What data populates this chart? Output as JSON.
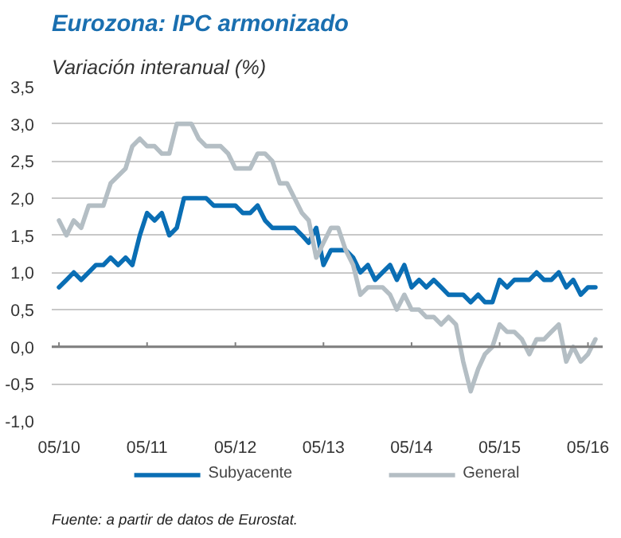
{
  "chart_data": {
    "type": "line",
    "title": "Eurozona: IPC armonizado",
    "subtitle": "Variación interanual (%)",
    "annotations": [
      "Fuente: a partir de datos de Eurostat."
    ],
    "x": [
      "2010-05",
      "2010-06",
      "2010-07",
      "2010-08",
      "2010-09",
      "2010-10",
      "2010-11",
      "2010-12",
      "2011-01",
      "2011-02",
      "2011-03",
      "2011-04",
      "2011-05",
      "2011-06",
      "2011-07",
      "2011-08",
      "2011-09",
      "2011-10",
      "2011-11",
      "2011-12",
      "2012-01",
      "2012-02",
      "2012-03",
      "2012-04",
      "2012-05",
      "2012-06",
      "2012-07",
      "2012-08",
      "2012-09",
      "2012-10",
      "2012-11",
      "2012-12",
      "2013-01",
      "2013-02",
      "2013-03",
      "2013-04",
      "2013-05",
      "2013-06",
      "2013-07",
      "2013-08",
      "2013-09",
      "2013-10",
      "2013-11",
      "2013-12",
      "2014-01",
      "2014-02",
      "2014-03",
      "2014-04",
      "2014-05",
      "2014-06",
      "2014-07",
      "2014-08",
      "2014-09",
      "2014-10",
      "2014-11",
      "2014-12",
      "2015-01",
      "2015-02",
      "2015-03",
      "2015-04",
      "2015-05",
      "2015-06",
      "2015-07",
      "2015-08",
      "2015-09",
      "2015-10",
      "2015-11",
      "2015-12",
      "2016-01",
      "2016-02",
      "2016-03",
      "2016-04",
      "2016-05",
      "2016-06"
    ],
    "series": [
      {
        "name": "Subyacente",
        "color": "#0a6eb4",
        "values": [
          0.8,
          0.9,
          1.0,
          0.9,
          1.0,
          1.1,
          1.1,
          1.2,
          1.1,
          1.2,
          1.1,
          1.5,
          1.8,
          1.7,
          1.8,
          1.5,
          1.6,
          2.0,
          2.0,
          2.0,
          2.0,
          1.9,
          1.9,
          1.9,
          1.9,
          1.8,
          1.8,
          1.9,
          1.7,
          1.6,
          1.6,
          1.6,
          1.6,
          1.5,
          1.4,
          1.6,
          1.1,
          1.3,
          1.3,
          1.3,
          1.2,
          1.0,
          1.1,
          0.9,
          1.0,
          1.1,
          0.9,
          1.1,
          0.8,
          0.9,
          0.8,
          0.9,
          0.8,
          0.7,
          0.7,
          0.7,
          0.6,
          0.7,
          0.6,
          0.6,
          0.9,
          0.8,
          0.9,
          0.9,
          0.9,
          1.0,
          0.9,
          0.9,
          1.0,
          0.8,
          0.9,
          0.7,
          0.8,
          0.8
        ]
      },
      {
        "name": "General",
        "color": "#b4bec4",
        "values": [
          1.7,
          1.5,
          1.7,
          1.6,
          1.9,
          1.9,
          1.9,
          2.2,
          2.3,
          2.4,
          2.7,
          2.8,
          2.7,
          2.7,
          2.6,
          2.6,
          3.0,
          3.0,
          3.0,
          2.8,
          2.7,
          2.7,
          2.7,
          2.6,
          2.4,
          2.4,
          2.4,
          2.6,
          2.6,
          2.5,
          2.2,
          2.2,
          2.0,
          1.8,
          1.7,
          1.2,
          1.4,
          1.6,
          1.6,
          1.3,
          1.1,
          0.7,
          0.8,
          0.8,
          0.8,
          0.7,
          0.5,
          0.7,
          0.5,
          0.5,
          0.4,
          0.4,
          0.3,
          0.4,
          0.3,
          -0.2,
          -0.6,
          -0.3,
          -0.1,
          0.0,
          0.3,
          0.2,
          0.2,
          0.1,
          -0.1,
          0.1,
          0.1,
          0.2,
          0.3,
          -0.2,
          0.0,
          -0.2,
          -0.1,
          0.1
        ]
      }
    ],
    "xlim": [
      "2010-04-01",
      "2016-07-01"
    ],
    "xticks": [
      {
        "value": "2010-05",
        "label": "05/10"
      },
      {
        "value": "2011-05",
        "label": "05/11"
      },
      {
        "value": "2012-05",
        "label": "05/12"
      },
      {
        "value": "2013-05",
        "label": "05/13"
      },
      {
        "value": "2014-05",
        "label": "05/14"
      },
      {
        "value": "2015-05",
        "label": "05/15"
      },
      {
        "value": "2016-05",
        "label": "05/16"
      }
    ],
    "ylim": [
      -1.0,
      3.5
    ],
    "yticks": [
      {
        "value": -1.0,
        "label": "-1,0"
      },
      {
        "value": -0.5,
        "label": "-0,5"
      },
      {
        "value": 0.0,
        "label": "0,0"
      },
      {
        "value": 0.5,
        "label": "0,5"
      },
      {
        "value": 1.0,
        "label": "1,0"
      },
      {
        "value": 1.5,
        "label": "1,5"
      },
      {
        "value": 2.0,
        "label": "2,0"
      },
      {
        "value": 2.5,
        "label": "2,5"
      },
      {
        "value": 3.0,
        "label": "3,0"
      },
      {
        "value": 3.5,
        "label": "3,5"
      }
    ],
    "ref_lines": [
      {
        "axis": "y",
        "value": 0.0,
        "color": "#808080"
      }
    ],
    "grid": "y",
    "legend": "bottom",
    "marker": "none",
    "line_style": "solid"
  }
}
